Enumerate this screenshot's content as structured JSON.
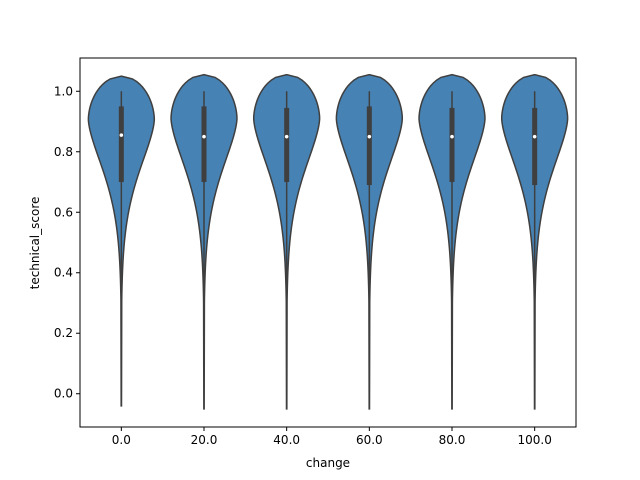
{
  "chart_data": {
    "type": "violin",
    "title": "",
    "xlabel": "change",
    "ylabel": "technical_score",
    "categories": [
      "0.0",
      "20.0",
      "40.0",
      "60.0",
      "80.0",
      "100.0"
    ],
    "ylim": [
      -0.11,
      1.11
    ],
    "yticks": [
      "0.0",
      "0.2",
      "0.4",
      "0.6",
      "0.8",
      "1.0"
    ],
    "grid": false,
    "fill_color": "#4682b4",
    "edge_color": "#3f3f3f",
    "violins": [
      {
        "category": "0.0",
        "min": -0.04,
        "max": 1.05,
        "q1": 0.7,
        "median": 0.855,
        "q3": 0.95,
        "whisker_low": 0.36,
        "whisker_high": 1.0
      },
      {
        "category": "20.0",
        "min": -0.05,
        "max": 1.055,
        "q1": 0.7,
        "median": 0.85,
        "q3": 0.95,
        "whisker_low": 0.36,
        "whisker_high": 1.0
      },
      {
        "category": "40.0",
        "min": -0.05,
        "max": 1.055,
        "q1": 0.7,
        "median": 0.85,
        "q3": 0.945,
        "whisker_low": 0.36,
        "whisker_high": 1.0
      },
      {
        "category": "60.0",
        "min": -0.05,
        "max": 1.055,
        "q1": 0.69,
        "median": 0.85,
        "q3": 0.95,
        "whisker_low": 0.35,
        "whisker_high": 1.0
      },
      {
        "category": "80.0",
        "min": -0.05,
        "max": 1.055,
        "q1": 0.7,
        "median": 0.85,
        "q3": 0.945,
        "whisker_low": 0.36,
        "whisker_high": 1.0
      },
      {
        "category": "100.0",
        "min": -0.05,
        "max": 1.055,
        "q1": 0.69,
        "median": 0.85,
        "q3": 0.945,
        "whisker_low": 0.35,
        "whisker_high": 1.0
      }
    ]
  }
}
